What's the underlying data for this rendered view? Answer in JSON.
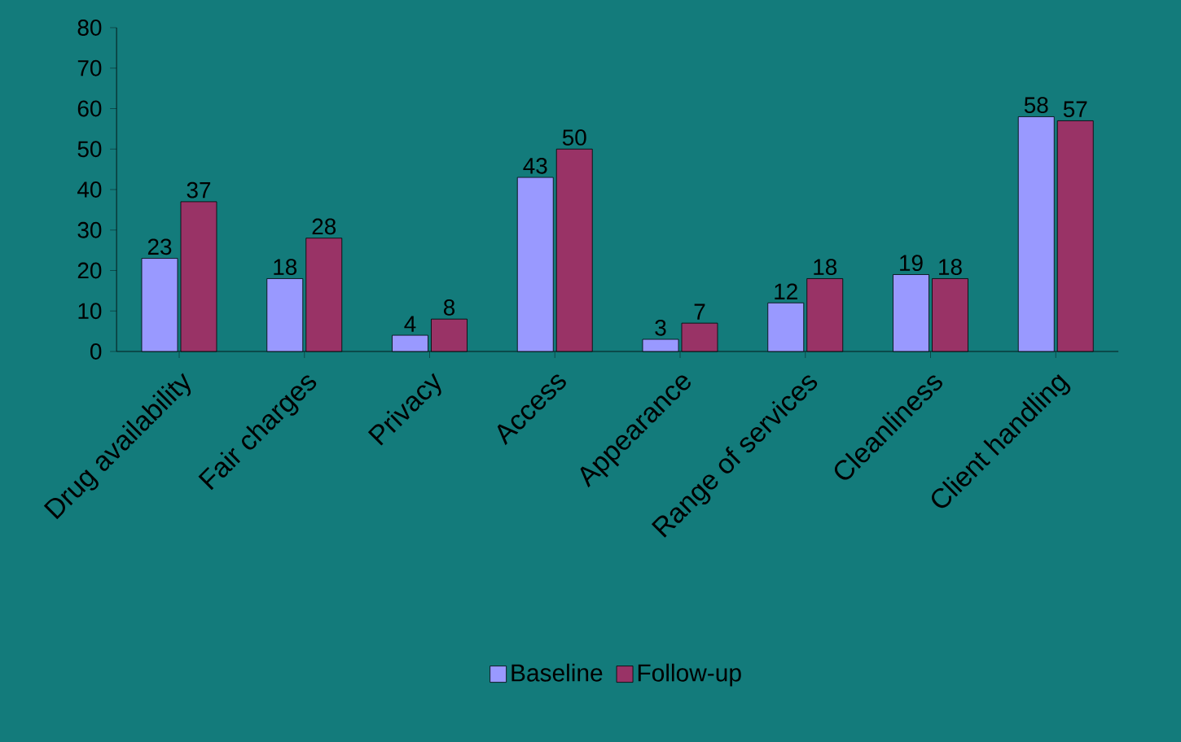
{
  "chart_data": {
    "type": "bar",
    "categories": [
      "Drug availability",
      "Fair charges",
      "Privacy",
      "Access",
      "Appearance",
      "Range of services",
      "Cleanliness",
      "Client handling"
    ],
    "series": [
      {
        "name": "Baseline",
        "color": "#9999ff",
        "values": [
          23,
          18,
          4,
          43,
          3,
          12,
          19,
          58
        ]
      },
      {
        "name": "Follow-up",
        "color": "#993366",
        "values": [
          37,
          28,
          8,
          50,
          7,
          18,
          18,
          57
        ]
      }
    ],
    "ylim": [
      0,
      80
    ],
    "yticks": [
      0,
      10,
      20,
      30,
      40,
      50,
      60,
      70,
      80
    ],
    "data_labels": true,
    "legend": "bottom"
  }
}
